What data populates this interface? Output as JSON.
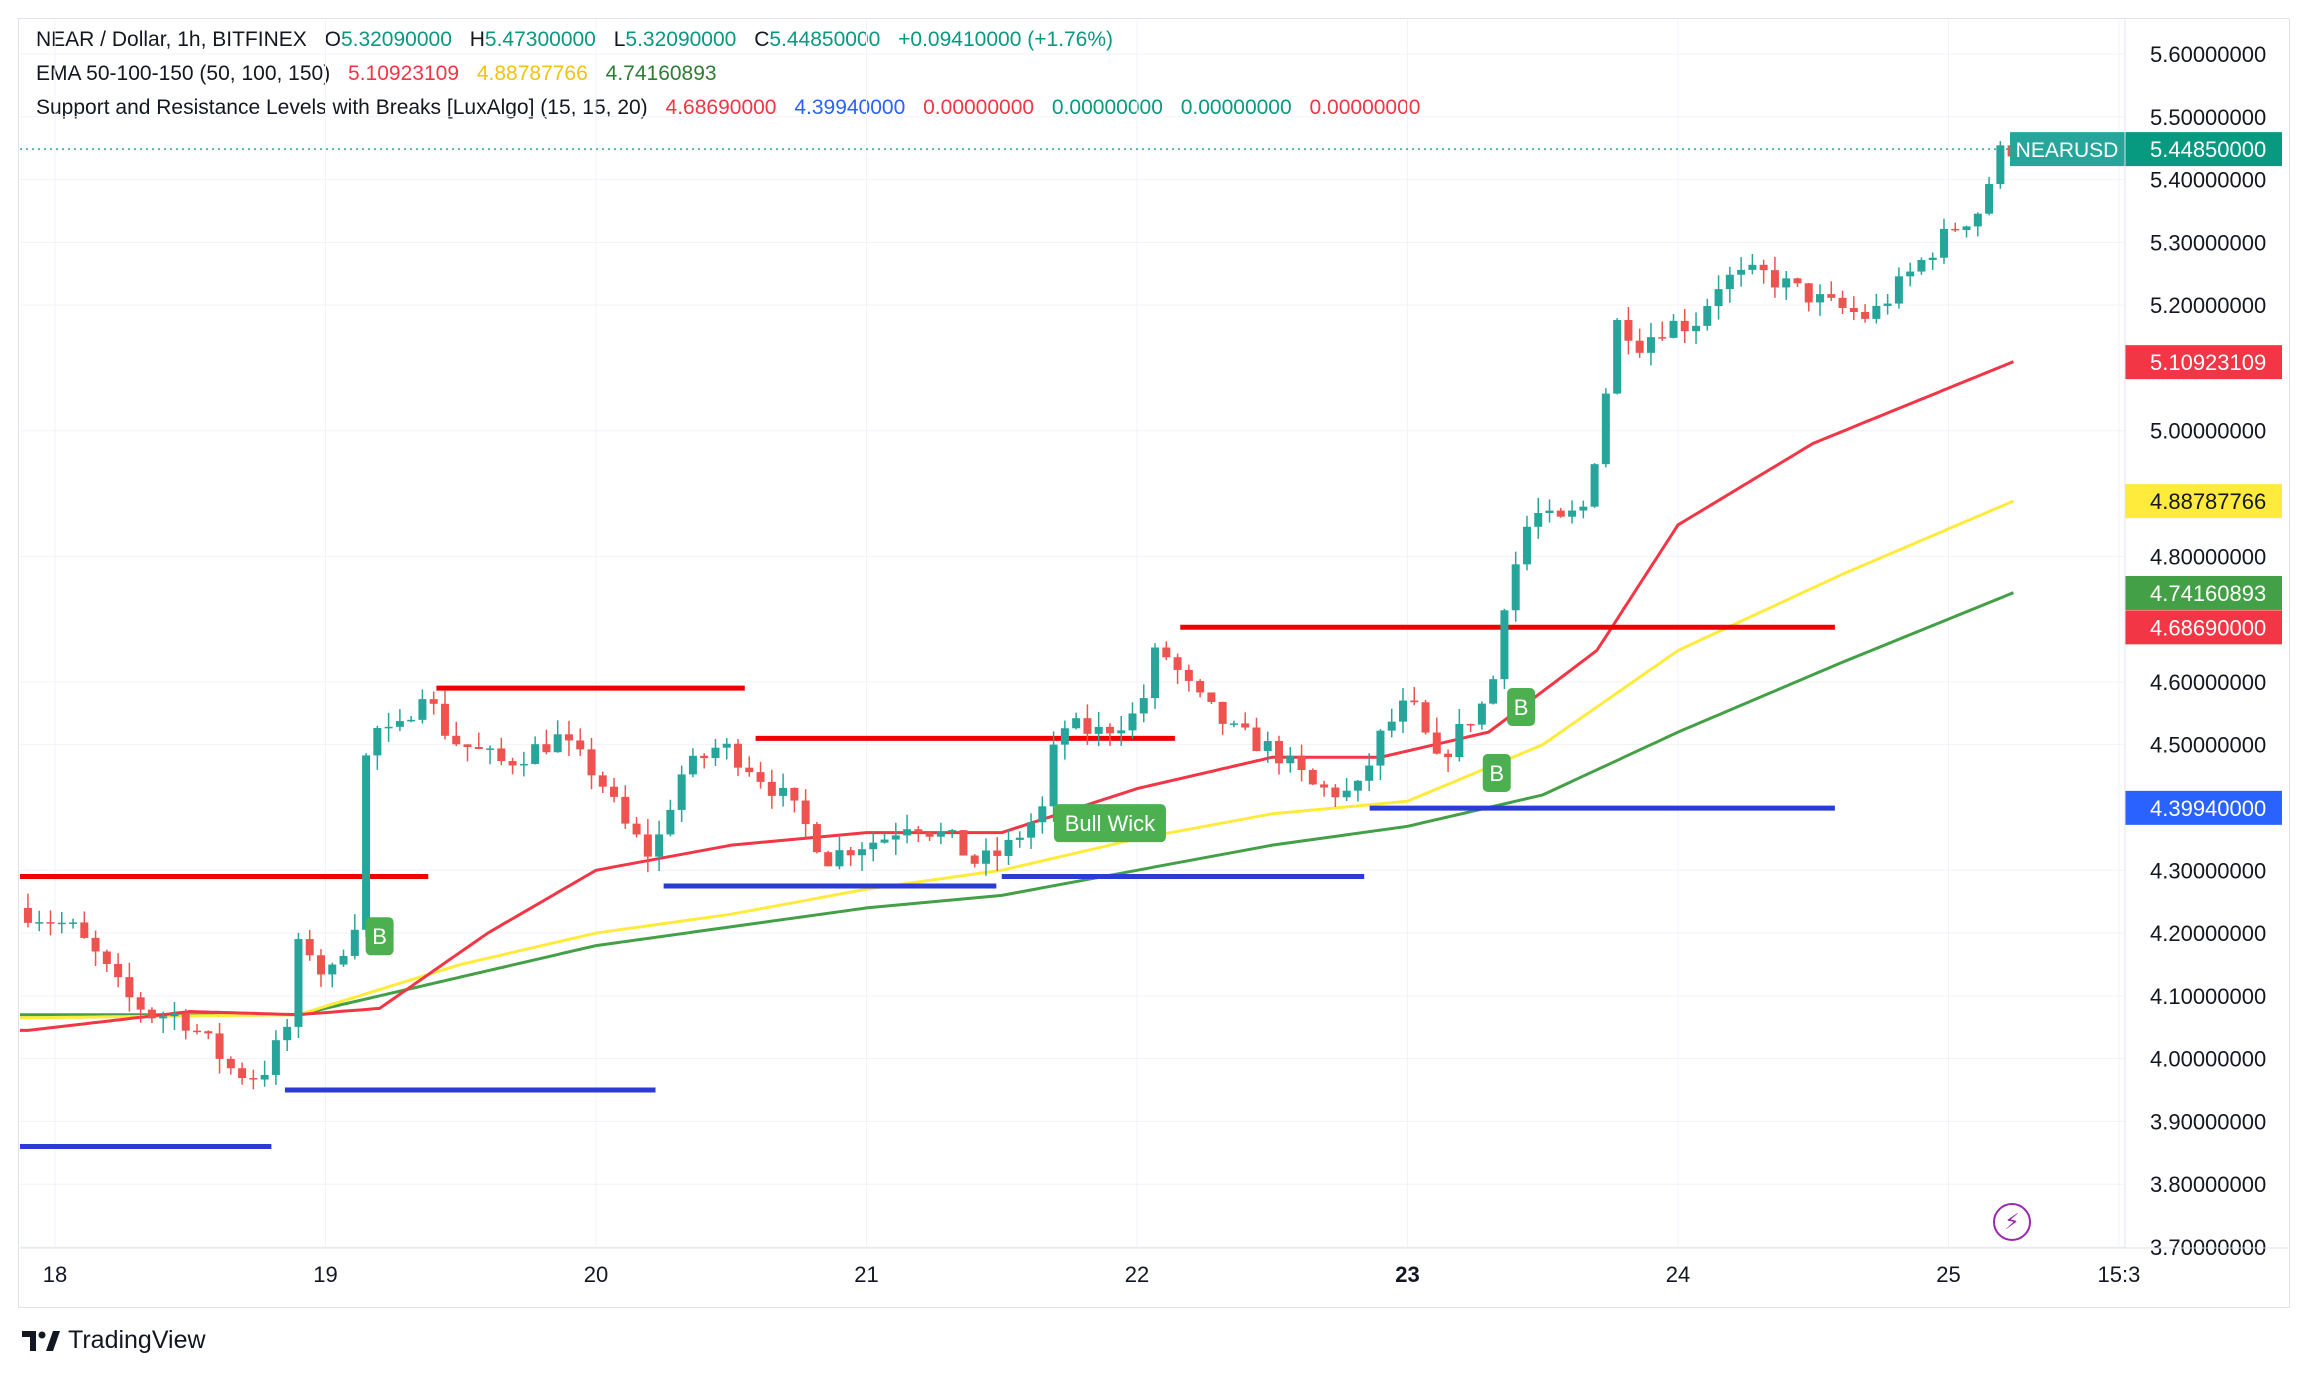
{
  "header": {
    "symbol": "NEAR / Dollar, 1h, BITFINEX",
    "open_label": "O",
    "open": "5.32090000",
    "high_label": "H",
    "high": "5.47300000",
    "low_label": "L",
    "low": "5.32090000",
    "close_label": "C",
    "close": "5.44850000",
    "change": "+0.09410000 (+1.76%)"
  },
  "ema_legend": {
    "name": "EMA 50-100-150 (50, 100, 150)",
    "ema50": "5.10923109",
    "ema100": "4.88787766",
    "ema150": "4.74160893"
  },
  "sr_legend": {
    "name": "Support and Resistance Levels with Breaks [LuxAlgo] (15, 15, 20)",
    "resistance": "4.68690000",
    "support": "4.39940000",
    "v3": "0.00000000",
    "v4": "0.00000000",
    "v5": "0.00000000",
    "v6": "0.00000000"
  },
  "brand": "TradingView",
  "colors": {
    "up": "#26a69a",
    "down": "#ef5350",
    "ema50": "#f23645",
    "ema100": "#ffeb3b",
    "ema150": "#43a047",
    "resistance": "#f00000",
    "support": "#2a3bd6",
    "break_label": "#4caf50",
    "text": "#131722",
    "legend_green": "#089981",
    "legend_red": "#f23645",
    "legend_blue": "#2962ff",
    "legend_yellow": "#f4c20d",
    "legend_darkgreen": "#2e7d32"
  },
  "chart_data": {
    "type": "candlestick",
    "x_ticks": [
      "18",
      "19",
      "20",
      "21",
      "22",
      "23",
      "24",
      "25",
      "15:3"
    ],
    "y_ticks": [
      "5.60000000",
      "5.50000000",
      "5.40000000",
      "5.30000000",
      "5.20000000",
      "5.00000000",
      "4.80000000",
      "4.60000000",
      "4.50000000",
      "4.30000000",
      "4.20000000",
      "4.10000000",
      "4.00000000",
      "3.90000000",
      "3.80000000",
      "3.70000000"
    ],
    "ylim": [
      3.7,
      5.64
    ],
    "symbol_label": "NEARUSD",
    "last_price": 5.4485,
    "price_labels": [
      {
        "text": "5.44850000",
        "value": 5.4485,
        "color": "#089981"
      },
      {
        "text": "5.10923109",
        "value": 5.10923109,
        "color": "#f23645"
      },
      {
        "text": "4.88787766",
        "value": 4.88787766,
        "color": "#ffeb3b"
      },
      {
        "text": "4.74160893",
        "value": 4.74160893,
        "color": "#43a047"
      },
      {
        "text": "4.68690000",
        "value": 4.6869,
        "color": "#f23645"
      },
      {
        "text": "4.39940000",
        "value": 4.3994,
        "color": "#2962ff"
      }
    ],
    "candle_range_days": [
      17.9,
      25.24
    ],
    "ohlc_anchors": [
      [
        17.9,
        4.24
      ],
      [
        18.1,
        4.21
      ],
      [
        18.2,
        4.16
      ],
      [
        18.3,
        4.1
      ],
      [
        18.4,
        4.07
      ],
      [
        18.5,
        4.07
      ],
      [
        18.6,
        4.03
      ],
      [
        18.7,
        3.98
      ],
      [
        18.8,
        3.97
      ],
      [
        18.9,
        4.05
      ],
      [
        18.95,
        4.2
      ],
      [
        19.05,
        4.12
      ],
      [
        19.15,
        4.22
      ],
      [
        19.2,
        4.53
      ],
      [
        19.3,
        4.51
      ],
      [
        19.4,
        4.59
      ],
      [
        19.5,
        4.51
      ],
      [
        19.7,
        4.47
      ],
      [
        19.9,
        4.51
      ],
      [
        20.05,
        4.45
      ],
      [
        20.15,
        4.37
      ],
      [
        20.25,
        4.32
      ],
      [
        20.35,
        4.45
      ],
      [
        20.5,
        4.5
      ],
      [
        20.6,
        4.47
      ],
      [
        20.75,
        4.41
      ],
      [
        20.9,
        4.32
      ],
      [
        21.0,
        4.34
      ],
      [
        21.1,
        4.35
      ],
      [
        21.2,
        4.38
      ],
      [
        21.35,
        4.35
      ],
      [
        21.45,
        4.31
      ],
      [
        21.55,
        4.33
      ],
      [
        21.7,
        4.4
      ],
      [
        21.75,
        4.53
      ],
      [
        21.9,
        4.52
      ],
      [
        22.05,
        4.55
      ],
      [
        22.12,
        4.66
      ],
      [
        22.25,
        4.58
      ],
      [
        22.4,
        4.52
      ],
      [
        22.55,
        4.49
      ],
      [
        22.7,
        4.43
      ],
      [
        22.85,
        4.42
      ],
      [
        22.95,
        4.52
      ],
      [
        23.05,
        4.57
      ],
      [
        23.15,
        4.47
      ],
      [
        23.25,
        4.53
      ],
      [
        23.35,
        4.58
      ],
      [
        23.4,
        4.73
      ],
      [
        23.5,
        4.87
      ],
      [
        23.6,
        4.85
      ],
      [
        23.7,
        4.88
      ],
      [
        23.75,
        5.0
      ],
      [
        23.82,
        5.18
      ],
      [
        23.9,
        5.14
      ],
      [
        24.0,
        5.17
      ],
      [
        24.1,
        5.17
      ],
      [
        24.2,
        5.24
      ],
      [
        24.35,
        5.25
      ],
      [
        24.5,
        5.22
      ],
      [
        24.6,
        5.2
      ],
      [
        24.75,
        5.18
      ],
      [
        24.9,
        5.25
      ],
      [
        25.05,
        5.32
      ],
      [
        25.15,
        5.35
      ],
      [
        25.24,
        5.45
      ]
    ],
    "ema50": [
      [
        17.9,
        4.045
      ],
      [
        18.5,
        4.075
      ],
      [
        18.9,
        4.07
      ],
      [
        19.2,
        4.08
      ],
      [
        19.6,
        4.2
      ],
      [
        20.0,
        4.3
      ],
      [
        20.5,
        4.34
      ],
      [
        21.0,
        4.36
      ],
      [
        21.5,
        4.36
      ],
      [
        22.0,
        4.43
      ],
      [
        22.5,
        4.48
      ],
      [
        22.9,
        4.48
      ],
      [
        23.3,
        4.52
      ],
      [
        23.7,
        4.65
      ],
      [
        24.0,
        4.85
      ],
      [
        24.5,
        4.98
      ],
      [
        25.24,
        5.11
      ]
    ],
    "ema100": [
      [
        17.9,
        4.065
      ],
      [
        18.9,
        4.07
      ],
      [
        19.5,
        4.15
      ],
      [
        20.0,
        4.2
      ],
      [
        20.5,
        4.23
      ],
      [
        21.0,
        4.27
      ],
      [
        21.5,
        4.3
      ],
      [
        22.0,
        4.35
      ],
      [
        22.5,
        4.39
      ],
      [
        23.0,
        4.41
      ],
      [
        23.5,
        4.5
      ],
      [
        24.0,
        4.65
      ],
      [
        24.6,
        4.77
      ],
      [
        25.24,
        4.888
      ]
    ],
    "ema150": [
      [
        17.9,
        4.07
      ],
      [
        18.9,
        4.07
      ],
      [
        19.5,
        4.13
      ],
      [
        20.0,
        4.18
      ],
      [
        20.5,
        4.21
      ],
      [
        21.0,
        4.24
      ],
      [
        21.5,
        4.26
      ],
      [
        22.0,
        4.3
      ],
      [
        22.5,
        4.34
      ],
      [
        23.0,
        4.37
      ],
      [
        23.5,
        4.42
      ],
      [
        24.0,
        4.52
      ],
      [
        24.6,
        4.63
      ],
      [
        25.24,
        4.742
      ]
    ],
    "resistance_levels": [
      [
        17.86,
        19.38,
        4.29
      ],
      [
        19.41,
        20.55,
        4.59
      ],
      [
        20.59,
        22.14,
        4.51
      ],
      [
        22.16,
        24.58,
        4.687
      ]
    ],
    "support_levels": [
      [
        17.86,
        18.8,
        3.86
      ],
      [
        18.85,
        20.22,
        3.95
      ],
      [
        20.25,
        21.48,
        4.275
      ],
      [
        21.5,
        22.84,
        4.29
      ],
      [
        22.86,
        24.58,
        4.399
      ]
    ],
    "break_labels": [
      {
        "text": "B",
        "day": 19.2,
        "value": 4.195
      },
      {
        "text": "B",
        "day": 23.42,
        "value": 4.56
      },
      {
        "text": "B",
        "day": 23.33,
        "value": 4.455
      },
      {
        "text": "Bull Wick",
        "day": 21.9,
        "value": 4.375
      }
    ]
  }
}
